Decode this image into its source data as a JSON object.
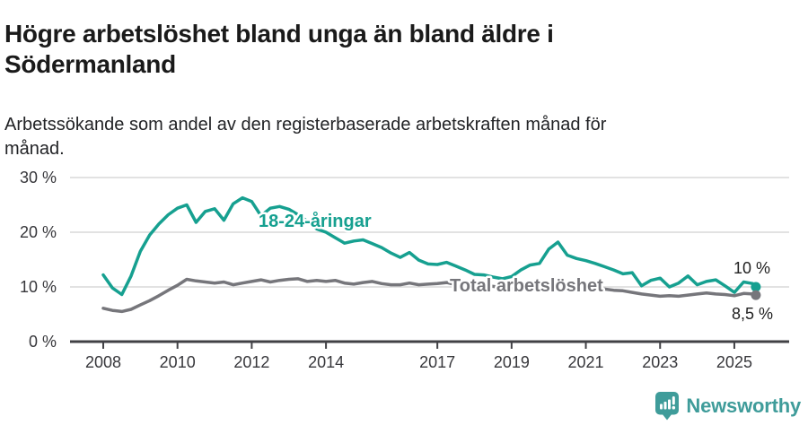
{
  "header": {
    "title": "Högre arbetslöshet bland unga än bland äldre i Södermanland",
    "subtitle": "Arbetssökande som andel av den registerbaserade arbetskraften månad för månad."
  },
  "footer": {
    "brand": "Newsworthy",
    "brand_color": "#3f9c9a",
    "logo_icon": "newsworthy-pin-barchart-icon"
  },
  "colors": {
    "young_series": "#16a090",
    "total_series": "#76767b",
    "axis": "#414145",
    "grid": "#d9d9d9",
    "text": "#1a1a1a"
  },
  "chart_data": {
    "type": "line",
    "title": "Högre arbetslöshet bland unga än bland äldre i Södermanland",
    "subtitle": "Arbetssökande som andel av den registerbaserade arbetskraften månad för månad.",
    "xlabel": "",
    "ylabel": "",
    "grid": true,
    "legend_position": "inline-labels",
    "x_axis": {
      "ticks": [
        2008,
        2010,
        2012,
        2014,
        2017,
        2019,
        2021,
        2023,
        2025
      ],
      "range": [
        2007.9,
        2026.5
      ]
    },
    "y_axis": {
      "ticks": [
        {
          "value": 0,
          "label": "0 %"
        },
        {
          "value": 10,
          "label": "10 %"
        },
        {
          "value": 20,
          "label": "20 %"
        },
        {
          "value": 30,
          "label": "30 %"
        }
      ],
      "range": [
        0,
        30
      ]
    },
    "series": [
      {
        "name": "18-24-åringar",
        "color": "#16a090",
        "end_label": "10 %",
        "points": [
          [
            2008.0,
            12.2
          ],
          [
            2008.25,
            9.8
          ],
          [
            2008.5,
            8.6
          ],
          [
            2008.75,
            12.0
          ],
          [
            2009.0,
            16.5
          ],
          [
            2009.25,
            19.5
          ],
          [
            2009.5,
            21.5
          ],
          [
            2009.75,
            23.2
          ],
          [
            2010.0,
            24.4
          ],
          [
            2010.25,
            25.0
          ],
          [
            2010.5,
            21.8
          ],
          [
            2010.75,
            23.8
          ],
          [
            2011.0,
            24.3
          ],
          [
            2011.25,
            22.2
          ],
          [
            2011.5,
            25.2
          ],
          [
            2011.75,
            26.3
          ],
          [
            2012.0,
            25.6
          ],
          [
            2012.25,
            23.0
          ],
          [
            2012.5,
            24.4
          ],
          [
            2012.75,
            24.7
          ],
          [
            2013.0,
            24.2
          ],
          [
            2013.25,
            23.2
          ],
          [
            2013.5,
            22.0
          ],
          [
            2013.75,
            20.6
          ],
          [
            2014.0,
            20.0
          ],
          [
            2014.25,
            19.0
          ],
          [
            2014.5,
            18.0
          ],
          [
            2014.75,
            18.4
          ],
          [
            2015.0,
            18.6
          ],
          [
            2015.25,
            17.9
          ],
          [
            2015.5,
            17.2
          ],
          [
            2015.75,
            16.2
          ],
          [
            2016.0,
            15.4
          ],
          [
            2016.25,
            16.3
          ],
          [
            2016.5,
            14.9
          ],
          [
            2016.75,
            14.2
          ],
          [
            2017.0,
            14.1
          ],
          [
            2017.25,
            14.5
          ],
          [
            2017.5,
            13.8
          ],
          [
            2017.75,
            13.1
          ],
          [
            2018.0,
            12.3
          ],
          [
            2018.25,
            12.2
          ],
          [
            2018.5,
            11.8
          ],
          [
            2018.75,
            11.5
          ],
          [
            2019.0,
            11.9
          ],
          [
            2019.25,
            13.1
          ],
          [
            2019.5,
            14.0
          ],
          [
            2019.75,
            14.3
          ],
          [
            2020.0,
            16.9
          ],
          [
            2020.25,
            18.2
          ],
          [
            2020.5,
            15.8
          ],
          [
            2020.75,
            15.2
          ],
          [
            2021.0,
            14.8
          ],
          [
            2021.25,
            14.3
          ],
          [
            2021.5,
            13.7
          ],
          [
            2021.75,
            13.1
          ],
          [
            2022.0,
            12.4
          ],
          [
            2022.25,
            12.6
          ],
          [
            2022.5,
            10.2
          ],
          [
            2022.75,
            11.2
          ],
          [
            2023.0,
            11.6
          ],
          [
            2023.25,
            10.0
          ],
          [
            2023.5,
            10.7
          ],
          [
            2023.75,
            12.0
          ],
          [
            2024.0,
            10.4
          ],
          [
            2024.25,
            11.0
          ],
          [
            2024.5,
            11.3
          ],
          [
            2024.75,
            10.2
          ],
          [
            2025.0,
            9.0
          ],
          [
            2025.25,
            10.9
          ],
          [
            2025.5,
            10.6
          ],
          [
            2025.58,
            10.0
          ]
        ]
      },
      {
        "name": "Total arbetslöshet",
        "color": "#76767b",
        "end_label": "8,5 %",
        "points": [
          [
            2008.0,
            6.1
          ],
          [
            2008.25,
            5.7
          ],
          [
            2008.5,
            5.5
          ],
          [
            2008.75,
            5.9
          ],
          [
            2009.0,
            6.7
          ],
          [
            2009.25,
            7.5
          ],
          [
            2009.5,
            8.4
          ],
          [
            2009.75,
            9.4
          ],
          [
            2010.0,
            10.3
          ],
          [
            2010.25,
            11.4
          ],
          [
            2010.5,
            11.1
          ],
          [
            2010.75,
            10.9
          ],
          [
            2011.0,
            10.7
          ],
          [
            2011.25,
            10.9
          ],
          [
            2011.5,
            10.4
          ],
          [
            2011.75,
            10.7
          ],
          [
            2012.0,
            11.0
          ],
          [
            2012.25,
            11.3
          ],
          [
            2012.5,
            10.9
          ],
          [
            2012.75,
            11.2
          ],
          [
            2013.0,
            11.4
          ],
          [
            2013.25,
            11.5
          ],
          [
            2013.5,
            11.0
          ],
          [
            2013.75,
            11.2
          ],
          [
            2014.0,
            11.0
          ],
          [
            2014.25,
            11.2
          ],
          [
            2014.5,
            10.7
          ],
          [
            2014.75,
            10.5
          ],
          [
            2015.0,
            10.8
          ],
          [
            2015.25,
            11.0
          ],
          [
            2015.5,
            10.6
          ],
          [
            2015.75,
            10.4
          ],
          [
            2016.0,
            10.4
          ],
          [
            2016.25,
            10.7
          ],
          [
            2016.5,
            10.4
          ],
          [
            2016.75,
            10.5
          ],
          [
            2017.0,
            10.6
          ],
          [
            2017.25,
            10.8
          ],
          [
            2017.5,
            10.4
          ],
          [
            2017.75,
            10.2
          ],
          [
            2018.0,
            10.1
          ],
          [
            2018.25,
            10.3
          ],
          [
            2018.5,
            10.1
          ],
          [
            2018.75,
            9.9
          ],
          [
            2019.0,
            9.7
          ],
          [
            2019.25,
            9.6
          ],
          [
            2019.5,
            9.4
          ],
          [
            2019.75,
            9.4
          ],
          [
            2020.0,
            9.6
          ],
          [
            2020.25,
            10.3
          ],
          [
            2020.5,
            10.4
          ],
          [
            2020.75,
            10.3
          ],
          [
            2021.0,
            10.1
          ],
          [
            2021.25,
            9.9
          ],
          [
            2021.5,
            9.6
          ],
          [
            2021.75,
            9.4
          ],
          [
            2022.0,
            9.3
          ],
          [
            2022.25,
            9.0
          ],
          [
            2022.5,
            8.7
          ],
          [
            2022.75,
            8.5
          ],
          [
            2023.0,
            8.3
          ],
          [
            2023.25,
            8.4
          ],
          [
            2023.5,
            8.3
          ],
          [
            2023.75,
            8.5
          ],
          [
            2024.0,
            8.7
          ],
          [
            2024.25,
            8.9
          ],
          [
            2024.5,
            8.7
          ],
          [
            2024.75,
            8.6
          ],
          [
            2025.0,
            8.4
          ],
          [
            2025.25,
            8.8
          ],
          [
            2025.5,
            8.7
          ],
          [
            2025.58,
            8.5
          ]
        ]
      }
    ]
  }
}
